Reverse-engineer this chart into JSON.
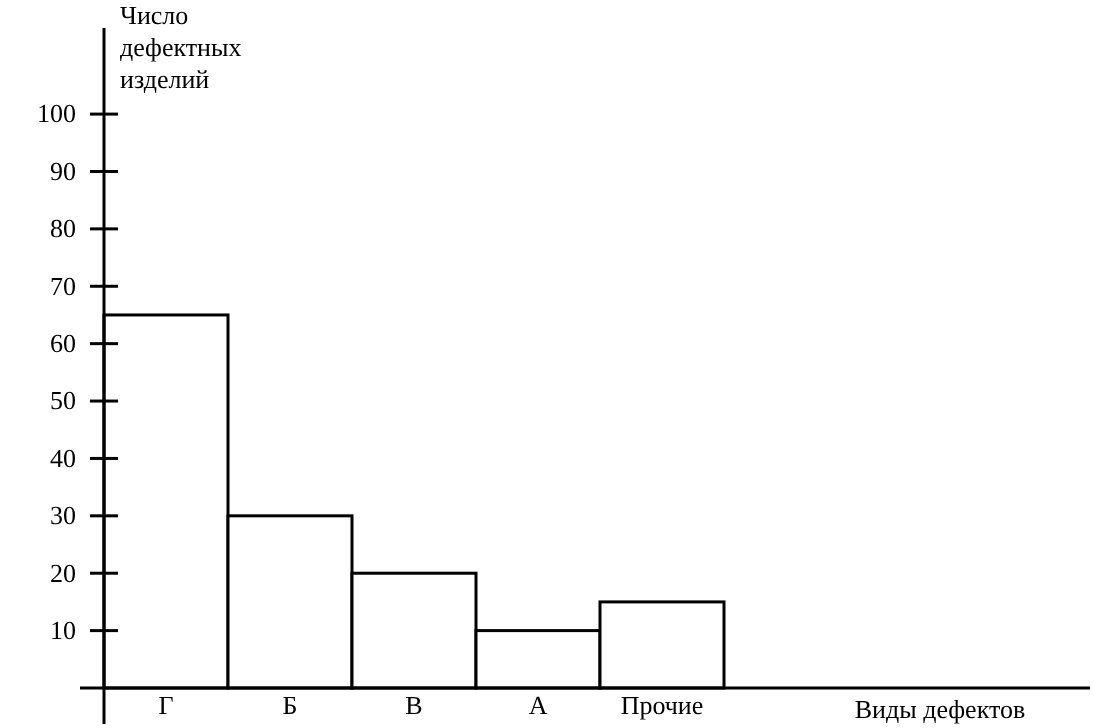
{
  "chart_data": {
    "type": "bar",
    "categories": [
      "Г",
      "Б",
      "В",
      "А",
      "Прочие"
    ],
    "values": [
      65,
      30,
      20,
      10,
      15
    ],
    "color": "#ffffff",
    "ylabel": "Число дефектных изделий",
    "annotations": [
      "Виды дефектов"
    ],
    "ylim": [
      0,
      115
    ],
    "yticks": [
      10,
      20,
      30,
      40,
      50,
      60,
      70,
      80,
      90,
      100
    ],
    "grid": false
  }
}
